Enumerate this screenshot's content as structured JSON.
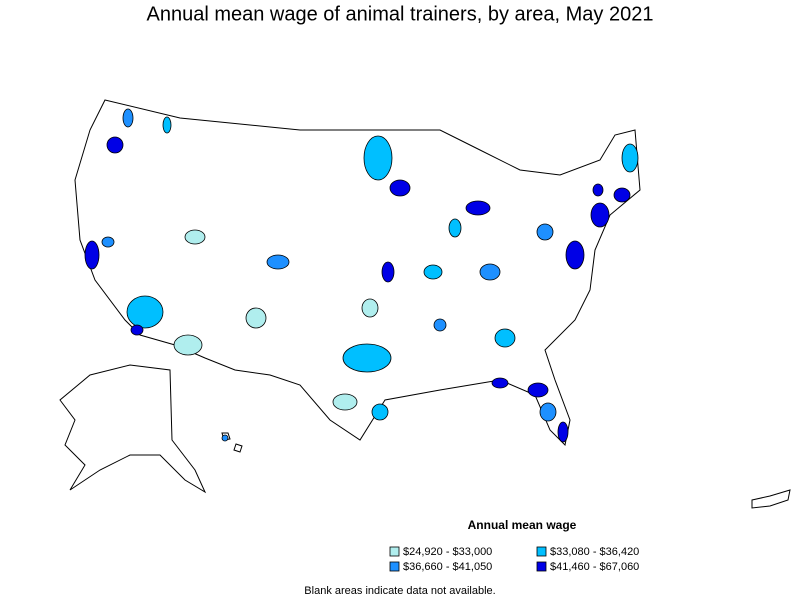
{
  "title": "Annual mean wage of animal trainers, by area, May 2021",
  "legend": {
    "title": "Annual mean wage",
    "items": [
      {
        "label": "$24,920 - $33,000",
        "color": "#b0eeee"
      },
      {
        "label": "$33,080 - $36,420",
        "color": "#00bfff"
      },
      {
        "label": "$36,660 - $41,050",
        "color": "#1e90ff"
      },
      {
        "label": "$41,460 - $67,060",
        "color": "#0000e6"
      }
    ]
  },
  "footnote": "Blank areas indicate data not available."
}
